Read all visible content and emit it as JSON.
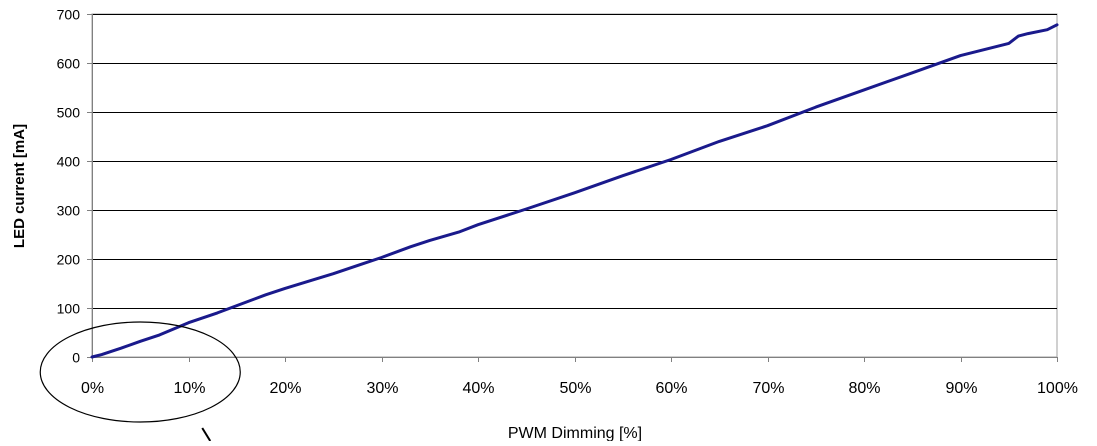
{
  "chart_data": {
    "type": "line",
    "title": "",
    "xlabel": "PWM Dimming [%]",
    "ylabel": "LED current [mA]",
    "xlim": [
      0,
      100
    ],
    "ylim": [
      0,
      700
    ],
    "x_ticks": [
      0,
      10,
      20,
      30,
      40,
      50,
      60,
      70,
      80,
      90,
      100
    ],
    "x_tick_labels": [
      "0%",
      "10%",
      "20%",
      "30%",
      "40%",
      "50%",
      "60%",
      "70%",
      "80%",
      "90%",
      "100%"
    ],
    "y_ticks": [
      0,
      100,
      200,
      300,
      400,
      500,
      600,
      700
    ],
    "y_tick_labels": [
      "0",
      "100",
      "200",
      "300",
      "400",
      "500",
      "600",
      "700"
    ],
    "grid": "horizontal",
    "legend": "none",
    "series": [
      {
        "color": "#1a1a8c",
        "x": [
          0,
          1,
          3,
          5,
          7,
          10,
          13,
          15,
          18,
          20,
          23,
          25,
          28,
          30,
          33,
          35,
          38,
          40,
          45,
          50,
          55,
          60,
          65,
          70,
          75,
          80,
          85,
          90,
          95,
          96,
          97,
          99,
          100
        ],
        "y": [
          0,
          5,
          18,
          32,
          45,
          70,
          90,
          105,
          127,
          140,
          158,
          170,
          190,
          203,
          225,
          238,
          255,
          270,
          302,
          335,
          370,
          403,
          440,
          472,
          510,
          545,
          580,
          615,
          640,
          655,
          660,
          668,
          678
        ]
      }
    ],
    "annotations": [
      {
        "type": "ellipse",
        "center": [
          5,
          0
        ],
        "text": ""
      }
    ],
    "colors": {
      "line": "#1a1a8c",
      "grid": "#000000",
      "axis": "#808080",
      "text": "#000000",
      "annotation": "#000000"
    }
  }
}
